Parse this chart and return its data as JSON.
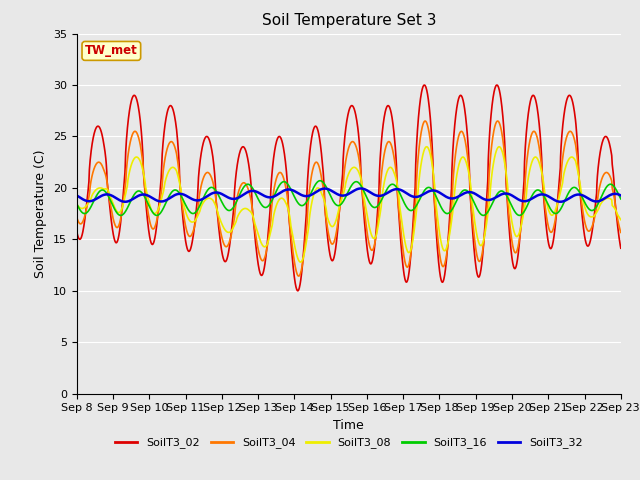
{
  "title": "Soil Temperature Set 3",
  "xlabel": "Time",
  "ylabel": "Soil Temperature (C)",
  "ylim": [
    0,
    35
  ],
  "yticks": [
    0,
    5,
    10,
    15,
    20,
    25,
    30,
    35
  ],
  "n_days": 15,
  "xtick_labels": [
    "Sep 8",
    "Sep 9",
    "Sep 10",
    "Sep 11",
    "Sep 12",
    "Sep 13",
    "Sep 14",
    "Sep 15",
    "Sep 16",
    "Sep 17",
    "Sep 18",
    "Sep 19",
    "Sep 20",
    "Sep 21",
    "Sep 22",
    "Sep 23"
  ],
  "series_order": [
    "SoilT3_02",
    "SoilT3_04",
    "SoilT3_08",
    "SoilT3_16",
    "SoilT3_32"
  ],
  "series": {
    "SoilT3_02": {
      "color": "#dd0000",
      "lw": 1.2
    },
    "SoilT3_04": {
      "color": "#ff7700",
      "lw": 1.2
    },
    "SoilT3_08": {
      "color": "#eeee00",
      "lw": 1.2
    },
    "SoilT3_16": {
      "color": "#00cc00",
      "lw": 1.2
    },
    "SoilT3_32": {
      "color": "#0000dd",
      "lw": 1.8
    }
  },
  "annotation_text": "TW_met",
  "annotation_color": "#cc0000",
  "annotation_bg": "#ffffcc",
  "annotation_border": "#cc9900",
  "plot_bg_color": "#e8e8e8",
  "fig_bg_color": "#e8e8e8",
  "title_fontsize": 11,
  "axis_fontsize": 9,
  "tick_fontsize": 8
}
